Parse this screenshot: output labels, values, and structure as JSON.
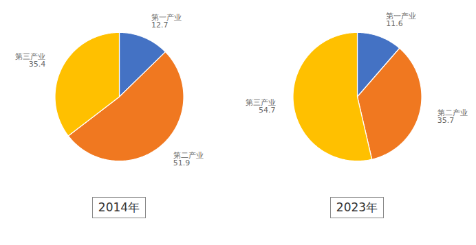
{
  "chart_data": [
    {
      "type": "pie",
      "title": "2014年",
      "categories": [
        "第一产业",
        "第二产业",
        "第三产业"
      ],
      "values": [
        12.7,
        51.9,
        35.4
      ],
      "colors": [
        "#4472C4",
        "#F07820",
        "#FFC000"
      ],
      "data_labels": true
    },
    {
      "type": "pie",
      "title": "2023年",
      "categories": [
        "第一产业",
        "第二产业",
        "第三产业"
      ],
      "values": [
        11.6,
        35.7,
        54.7
      ],
      "colors": [
        "#4472C4",
        "#F07820",
        "#FFC000"
      ],
      "data_labels": true
    }
  ]
}
